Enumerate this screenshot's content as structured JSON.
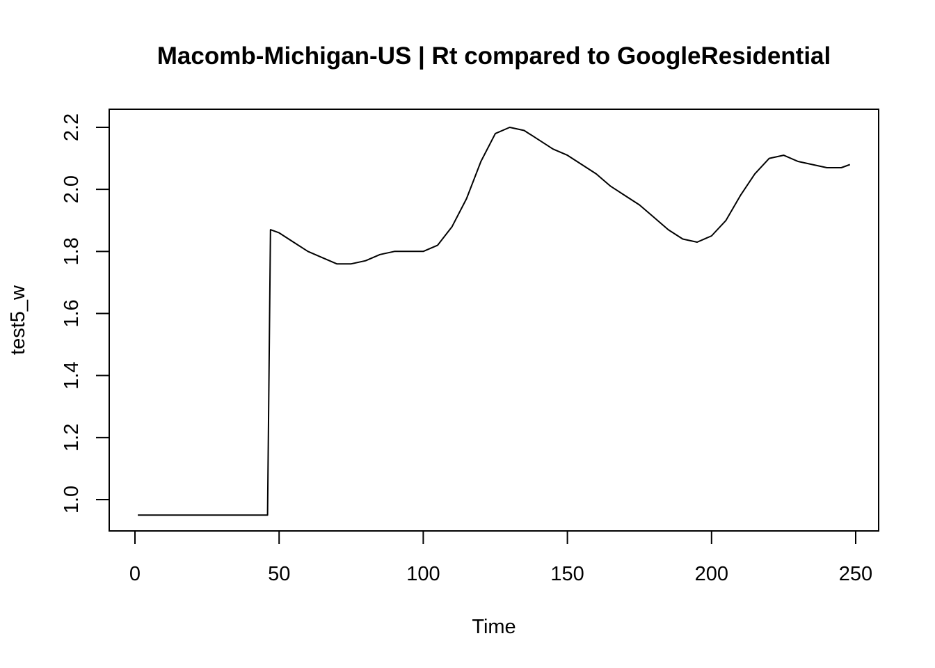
{
  "chart_data": {
    "type": "line",
    "title": "Macomb-Michigan-US | Rt compared to GoogleResidential",
    "xlabel": "Time",
    "ylabel": "test5_w",
    "xlim": [
      0,
      250
    ],
    "ylim": [
      1.0,
      2.2
    ],
    "xticks": [
      0,
      50,
      100,
      150,
      200,
      250
    ],
    "yticks": [
      "1.0",
      "1.2",
      "1.4",
      "1.6",
      "1.8",
      "2.0",
      "2.2"
    ],
    "grid": false,
    "series": [
      {
        "x": [
          1,
          10,
          20,
          30,
          40,
          46,
          47,
          50,
          55,
          60,
          65,
          70,
          75,
          80,
          85,
          90,
          95,
          100,
          105,
          110,
          115,
          120,
          125,
          130,
          135,
          140,
          145,
          150,
          155,
          160,
          165,
          170,
          175,
          180,
          185,
          190,
          195,
          200,
          205,
          210,
          215,
          220,
          225,
          230,
          235,
          240,
          245,
          248
        ],
        "y": [
          0.95,
          0.95,
          0.95,
          0.95,
          0.95,
          0.95,
          1.87,
          1.86,
          1.83,
          1.8,
          1.78,
          1.76,
          1.76,
          1.77,
          1.79,
          1.8,
          1.8,
          1.8,
          1.82,
          1.88,
          1.97,
          2.09,
          2.18,
          2.2,
          2.19,
          2.16,
          2.13,
          2.11,
          2.08,
          2.05,
          2.01,
          1.98,
          1.95,
          1.91,
          1.87,
          1.84,
          1.83,
          1.85,
          1.9,
          1.98,
          2.05,
          2.1,
          2.11,
          2.09,
          2.08,
          2.07,
          2.07,
          2.08
        ]
      }
    ]
  }
}
